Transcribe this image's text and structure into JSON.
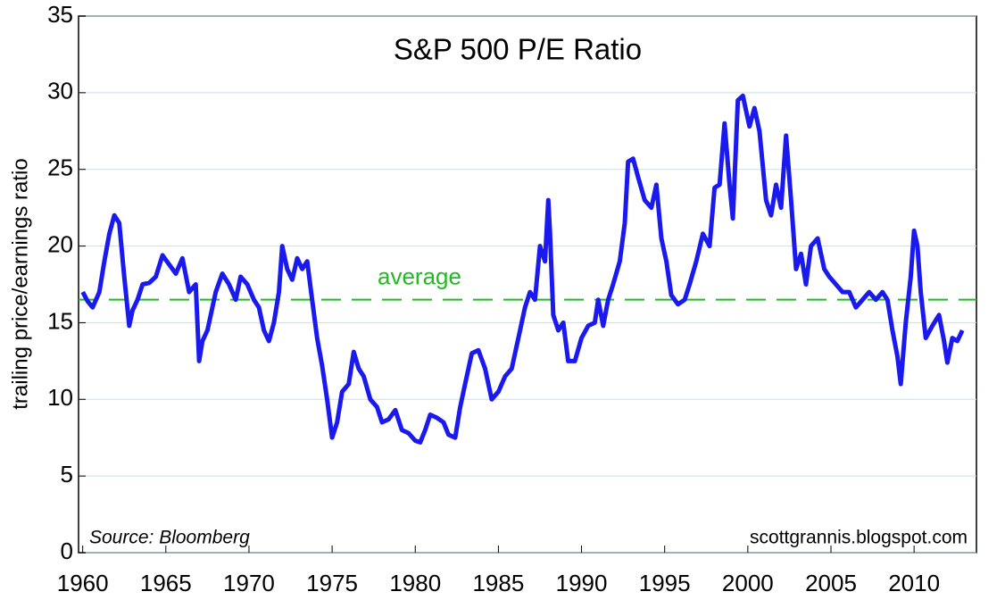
{
  "chart_data": {
    "type": "line",
    "title": "S&P 500 P/E Ratio",
    "ylabel": "trailing price/earnings ratio",
    "source": "Source: Bloomberg",
    "credit": "scottgrannis.blogspot.com",
    "xlim": [
      1959.75,
      2013.75
    ],
    "xticks": [
      1960,
      1965,
      1970,
      1975,
      1980,
      1985,
      1990,
      1995,
      2000,
      2005,
      2010
    ],
    "ylim": [
      0,
      35
    ],
    "yticks": [
      0,
      5,
      10,
      15,
      20,
      25,
      30,
      35
    ],
    "grid": true,
    "grid_color": "#bfe3ef",
    "average": {
      "label": "average",
      "value": 16.5,
      "color": "#22bb22"
    },
    "x": [
      1960.0,
      1960.3,
      1960.6,
      1961.0,
      1961.3,
      1961.6,
      1961.9,
      1962.2,
      1962.5,
      1962.8,
      1963.0,
      1963.3,
      1963.6,
      1964.0,
      1964.4,
      1964.8,
      1965.2,
      1965.6,
      1966.0,
      1966.4,
      1966.8,
      1967.0,
      1967.2,
      1967.5,
      1968.0,
      1968.4,
      1968.8,
      1969.2,
      1969.5,
      1969.9,
      1970.3,
      1970.6,
      1970.9,
      1971.2,
      1971.5,
      1971.8,
      1972.0,
      1972.3,
      1972.6,
      1972.9,
      1973.2,
      1973.5,
      1973.8,
      1974.1,
      1974.4,
      1974.7,
      1975.0,
      1975.3,
      1975.6,
      1976.0,
      1976.3,
      1976.6,
      1976.9,
      1977.3,
      1977.7,
      1978.0,
      1978.4,
      1978.8,
      1979.2,
      1979.6,
      1980.0,
      1980.3,
      1980.6,
      1980.9,
      1981.3,
      1981.7,
      1982.0,
      1982.4,
      1982.7,
      1983.0,
      1983.4,
      1983.8,
      1984.2,
      1984.6,
      1985.0,
      1985.4,
      1985.8,
      1986.2,
      1986.6,
      1986.9,
      1987.2,
      1987.5,
      1987.8,
      1988.0,
      1988.1,
      1988.3,
      1988.6,
      1988.9,
      1989.2,
      1989.6,
      1990.0,
      1990.4,
      1990.8,
      1991.0,
      1991.3,
      1991.6,
      1991.9,
      1992.3,
      1992.6,
      1992.8,
      1993.1,
      1993.4,
      1993.8,
      1994.2,
      1994.5,
      1994.8,
      1995.1,
      1995.4,
      1995.8,
      1996.2,
      1996.5,
      1996.9,
      1997.3,
      1997.7,
      1998.0,
      1998.3,
      1998.6,
      1998.9,
      1999.1,
      1999.4,
      1999.7,
      2000.1,
      2000.4,
      2000.7,
      2001.1,
      2001.4,
      2001.7,
      2002.0,
      2002.3,
      2002.6,
      2002.9,
      2003.2,
      2003.5,
      2003.8,
      2004.2,
      2004.6,
      2004.9,
      2005.3,
      2005.7,
      2006.1,
      2006.5,
      2006.9,
      2007.3,
      2007.7,
      2008.1,
      2008.4,
      2008.7,
      2009.0,
      2009.2,
      2009.5,
      2009.8,
      2010.0,
      2010.2,
      2010.4,
      2010.7,
      2011.1,
      2011.5,
      2011.8,
      2012.0,
      2012.3,
      2012.6,
      2012.9
    ],
    "series": [
      {
        "name": "P/E",
        "color": "#1a1aee",
        "values": [
          17.0,
          16.4,
          16.0,
          17.0,
          19.0,
          20.8,
          22.0,
          21.5,
          18.0,
          14.8,
          15.8,
          16.5,
          17.5,
          17.6,
          18.0,
          19.4,
          18.8,
          18.2,
          19.2,
          17.0,
          17.5,
          12.5,
          13.8,
          14.5,
          17.0,
          18.2,
          17.5,
          16.5,
          18.0,
          17.5,
          16.5,
          16.0,
          14.5,
          13.8,
          15.0,
          17.0,
          20.0,
          18.5,
          17.8,
          19.2,
          18.5,
          19.0,
          16.5,
          14.0,
          12.2,
          10.0,
          7.5,
          8.5,
          10.5,
          11.0,
          13.1,
          12.0,
          11.5,
          10.0,
          9.5,
          8.5,
          8.7,
          9.3,
          8.0,
          7.8,
          7.3,
          7.2,
          8.0,
          9.0,
          8.8,
          8.5,
          7.7,
          7.5,
          9.5,
          11.0,
          13.0,
          13.2,
          12.0,
          10.0,
          10.5,
          11.5,
          12.0,
          14.0,
          16.0,
          17.0,
          16.5,
          20.0,
          19.0,
          23.0,
          21.0,
          15.5,
          14.5,
          15.0,
          12.5,
          12.5,
          14.0,
          14.8,
          15.0,
          16.5,
          14.8,
          16.5,
          17.5,
          19.0,
          21.5,
          25.5,
          25.7,
          24.5,
          23.0,
          22.5,
          24.0,
          20.5,
          19.0,
          16.8,
          16.2,
          16.5,
          17.5,
          19.0,
          20.8,
          20.0,
          23.8,
          24.0,
          28.0,
          24.0,
          21.8,
          29.5,
          29.8,
          27.8,
          29.0,
          27.5,
          23.0,
          22.0,
          24.0,
          22.5,
          27.2,
          23.0,
          18.5,
          19.5,
          17.5,
          20.0,
          20.5,
          18.5,
          18.0,
          17.5,
          17.0,
          17.0,
          16.0,
          16.5,
          17.0,
          16.5,
          17.0,
          16.5,
          14.5,
          12.8,
          11.0,
          15.0,
          18.0,
          21.0,
          20.0,
          17.0,
          14.0,
          14.8,
          15.5,
          13.8,
          12.4,
          14.0,
          13.8,
          14.5
        ]
      }
    ]
  }
}
